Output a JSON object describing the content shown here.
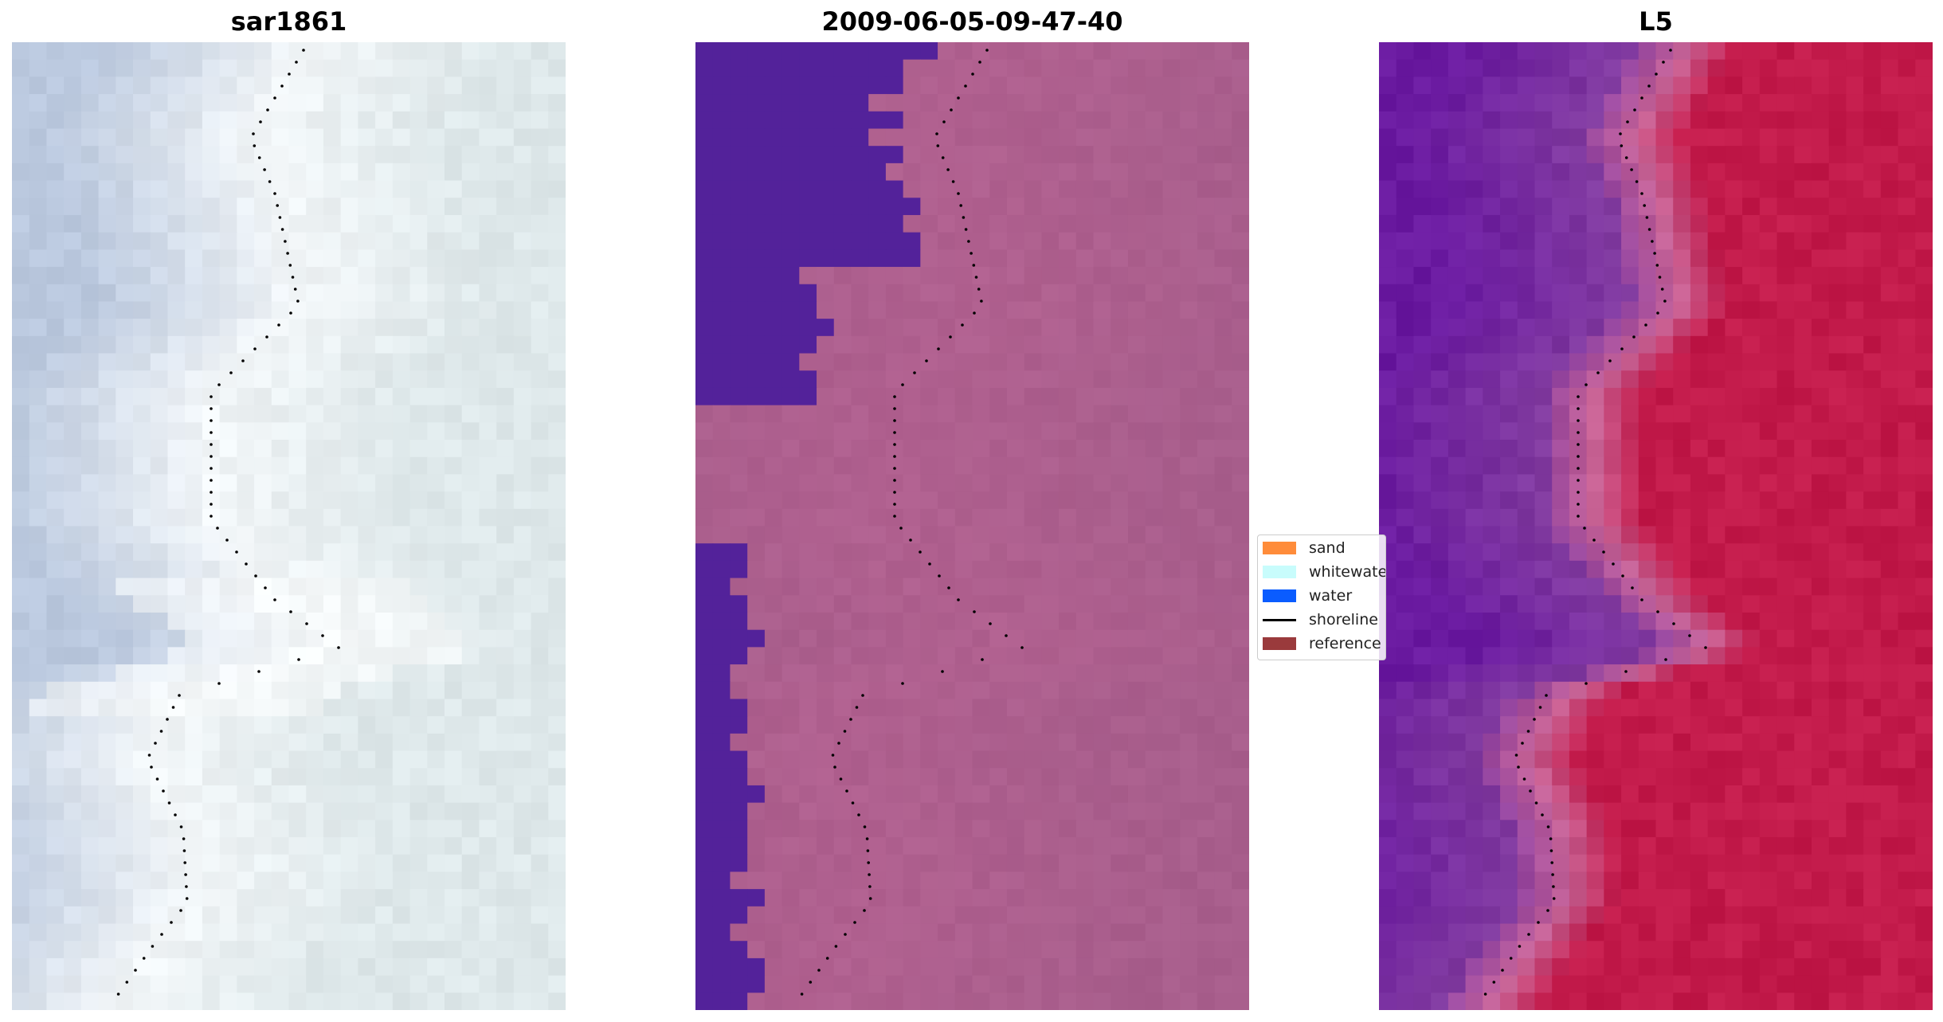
{
  "panels": [
    {
      "title": "sar1861"
    },
    {
      "title": "2009-06-05-09-47-40"
    },
    {
      "title": "L5"
    }
  ],
  "legend": [
    {
      "label": "sand",
      "color": "#ff8c3a",
      "kind": "patch"
    },
    {
      "label": "whitewater",
      "color": "#c8fcfc",
      "kind": "patch"
    },
    {
      "label": "water",
      "color": "#0a5cff",
      "kind": "patch"
    },
    {
      "label": "shoreline",
      "color": "#000000",
      "kind": "line"
    },
    {
      "label": "reference",
      "color": "#9a3a3c",
      "kind": "patch"
    }
  ],
  "colors": {
    "sar_base": "#d6dde8",
    "classification_water": "#53229a",
    "classification_sand": "#b0608f",
    "l5_water": "#6a1aa0",
    "l5_sand": "#c21a4a",
    "shoreline_dots": "#000000"
  }
}
